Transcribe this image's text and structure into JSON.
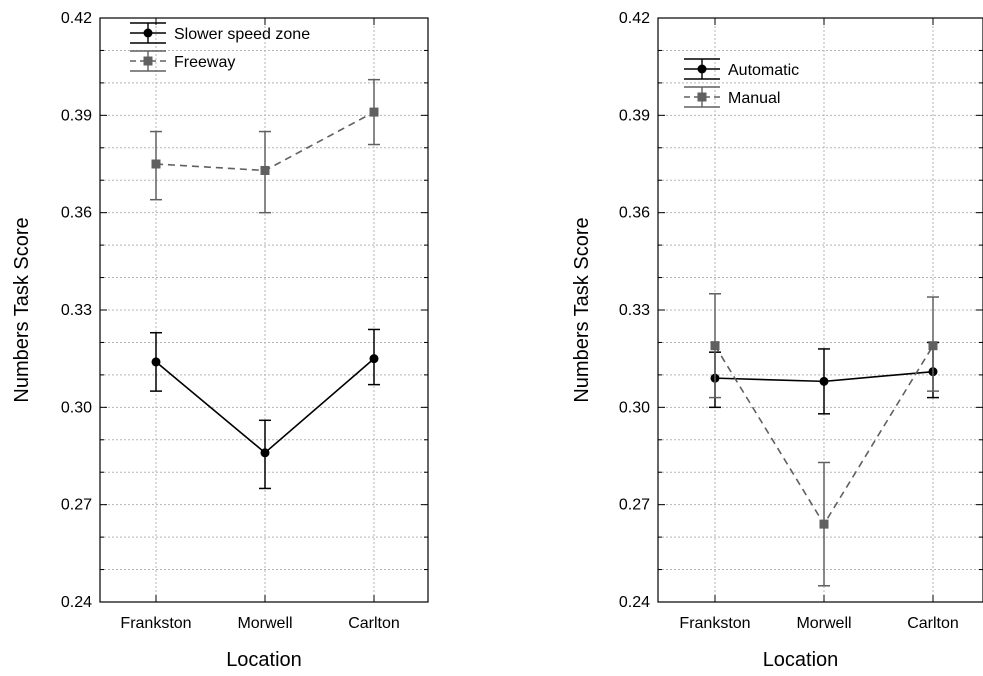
{
  "chart_data": [
    {
      "type": "line",
      "xlabel": "Location",
      "ylabel": "Numbers Task Score",
      "categories": [
        "Frankston",
        "Morwell",
        "Carlton"
      ],
      "ylim": [
        0.24,
        0.42
      ],
      "yticks": [
        "0.24",
        "0.27",
        "0.30",
        "0.33",
        "0.36",
        "0.39",
        "0.42"
      ],
      "grid": true,
      "legend": "top-left",
      "series": [
        {
          "name": "Slower speed zone",
          "color": "#000000",
          "dashed": false,
          "marker": "circle",
          "values": [
            0.314,
            0.286,
            0.315
          ],
          "err_low": [
            0.305,
            0.275,
            0.307
          ],
          "err_high": [
            0.323,
            0.296,
            0.324
          ]
        },
        {
          "name": "Freeway",
          "color": "#606060",
          "dashed": true,
          "marker": "square",
          "values": [
            0.375,
            0.373,
            0.391
          ],
          "err_low": [
            0.364,
            0.36,
            0.381
          ],
          "err_high": [
            0.385,
            0.385,
            0.401
          ]
        }
      ]
    },
    {
      "type": "line",
      "xlabel": "Location",
      "ylabel": "Numbers Task Score",
      "categories": [
        "Frankston",
        "Morwell",
        "Carlton"
      ],
      "ylim": [
        0.24,
        0.42
      ],
      "yticks": [
        "0.24",
        "0.27",
        "0.30",
        "0.33",
        "0.36",
        "0.39",
        "0.42"
      ],
      "grid": true,
      "legend": "top-left",
      "series": [
        {
          "name": "Automatic",
          "color": "#000000",
          "dashed": false,
          "marker": "circle",
          "values": [
            0.309,
            0.308,
            0.311
          ],
          "err_low": [
            0.3,
            0.298,
            0.303
          ],
          "err_high": [
            0.317,
            0.318,
            0.32
          ]
        },
        {
          "name": "Manual",
          "color": "#606060",
          "dashed": true,
          "marker": "square",
          "values": [
            0.319,
            0.264,
            0.319
          ],
          "err_low": [
            0.303,
            0.245,
            0.305
          ],
          "err_high": [
            0.335,
            0.283,
            0.334
          ]
        }
      ]
    }
  ]
}
